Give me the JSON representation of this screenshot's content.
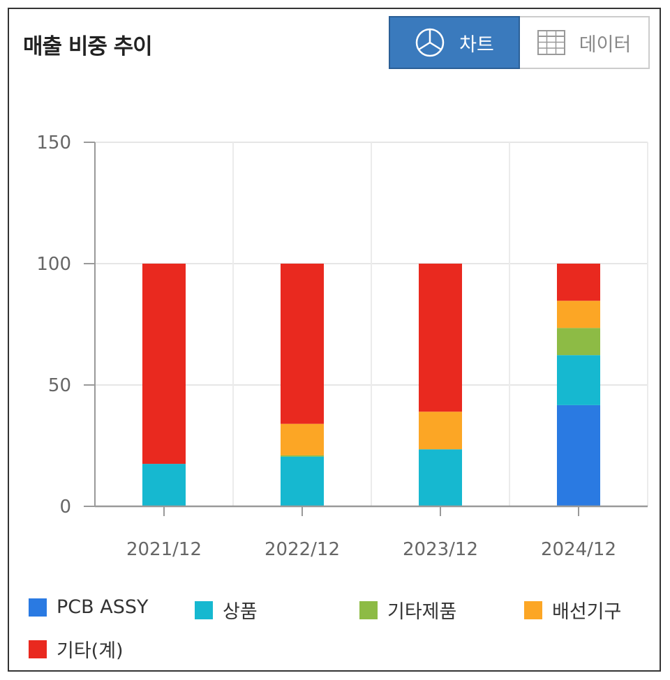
{
  "header": {
    "title": "매출 비중 추이"
  },
  "toggle": {
    "chart_label": "차트",
    "data_label": "데이터"
  },
  "chart_data": {
    "type": "bar",
    "stacked": true,
    "categories": [
      "2021/12",
      "2022/12",
      "2023/12",
      "2024/12"
    ],
    "series": [
      {
        "name": "PCB ASSY",
        "color": "#2a7ae2",
        "values": [
          0,
          0,
          0,
          41.7
        ]
      },
      {
        "name": "상품",
        "color": "#16b8d0",
        "values": [
          17.5,
          20.5,
          23.5,
          20.6
        ]
      },
      {
        "name": "기타제품",
        "color": "#8dbb45",
        "values": [
          0,
          0.5,
          0,
          11.2
        ]
      },
      {
        "name": "배선기구",
        "color": "#fca625",
        "values": [
          0,
          13.0,
          15.5,
          11.2
        ]
      },
      {
        "name": "기타(계)",
        "color": "#e9291f",
        "values": [
          82.5,
          66.0,
          61.0,
          15.3
        ]
      }
    ],
    "ylim": [
      0,
      150
    ],
    "yticks": [
      0,
      50,
      100,
      150
    ],
    "grid": true,
    "legend_position": "bottom"
  }
}
